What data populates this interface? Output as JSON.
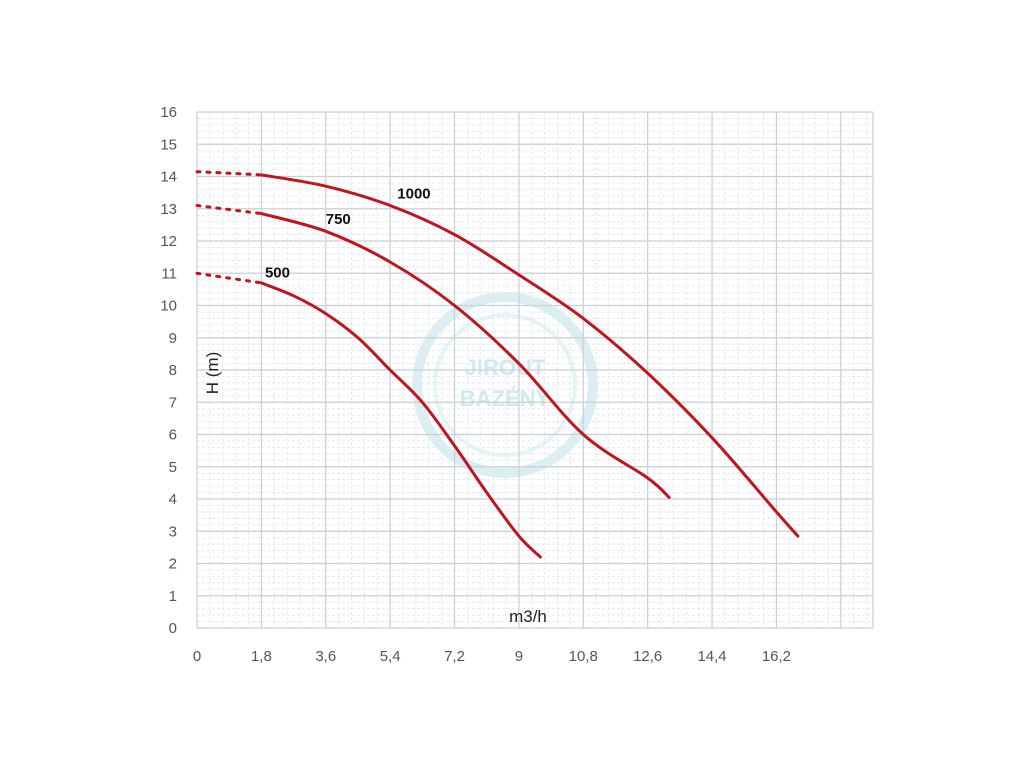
{
  "chart_data": {
    "type": "line",
    "xlabel": "m3/h",
    "ylabel": "H (m)",
    "xlim": [
      0,
      18.9
    ],
    "ylim": [
      0,
      16
    ],
    "x_ticks": [
      "0",
      "1,8",
      "3,6",
      "5,4",
      "7,2",
      "9",
      "10,8",
      "12,6",
      "14,4",
      "16,2"
    ],
    "y_ticks": [
      "0",
      "1",
      "2",
      "3",
      "4",
      "5",
      "6",
      "7",
      "8",
      "9",
      "10",
      "11",
      "12",
      "13",
      "14",
      "15",
      "16"
    ],
    "grid": true,
    "colors": {
      "curve": "#c0151f",
      "grid_major": "#c9cfd2",
      "grid_minor": "#e6eaec",
      "watermark": "#d6edf2"
    },
    "series": [
      {
        "name": "500",
        "extrapolated": {
          "x": [
            0,
            1.8
          ],
          "y": [
            11.0,
            10.7
          ]
        },
        "x": [
          1.8,
          2.7,
          3.6,
          4.5,
          5.4,
          6.3,
          7.2,
          8.1,
          9.0,
          9.6
        ],
        "y": [
          10.7,
          10.3,
          9.75,
          9.0,
          8.0,
          7.0,
          5.65,
          4.2,
          2.85,
          2.2
        ]
      },
      {
        "name": "750",
        "extrapolated": {
          "x": [
            0,
            1.8
          ],
          "y": [
            13.1,
            12.85
          ]
        },
        "x": [
          1.8,
          3.6,
          5.4,
          7.2,
          9.0,
          10.8,
          12.6,
          13.2
        ],
        "y": [
          12.85,
          12.3,
          11.35,
          10.0,
          8.2,
          6.0,
          4.65,
          4.05
        ]
      },
      {
        "name": "1000",
        "extrapolated": {
          "x": [
            0,
            1.8
          ],
          "y": [
            14.15,
            14.05
          ]
        },
        "x": [
          1.8,
          3.6,
          5.4,
          7.2,
          9.0,
          10.8,
          12.6,
          14.4,
          16.2,
          16.8
        ],
        "y": [
          14.05,
          13.7,
          13.1,
          12.2,
          10.95,
          9.6,
          7.9,
          5.9,
          3.6,
          2.85
        ]
      }
    ],
    "watermark": [
      "JIROUT",
      "BAZÉNY"
    ]
  }
}
